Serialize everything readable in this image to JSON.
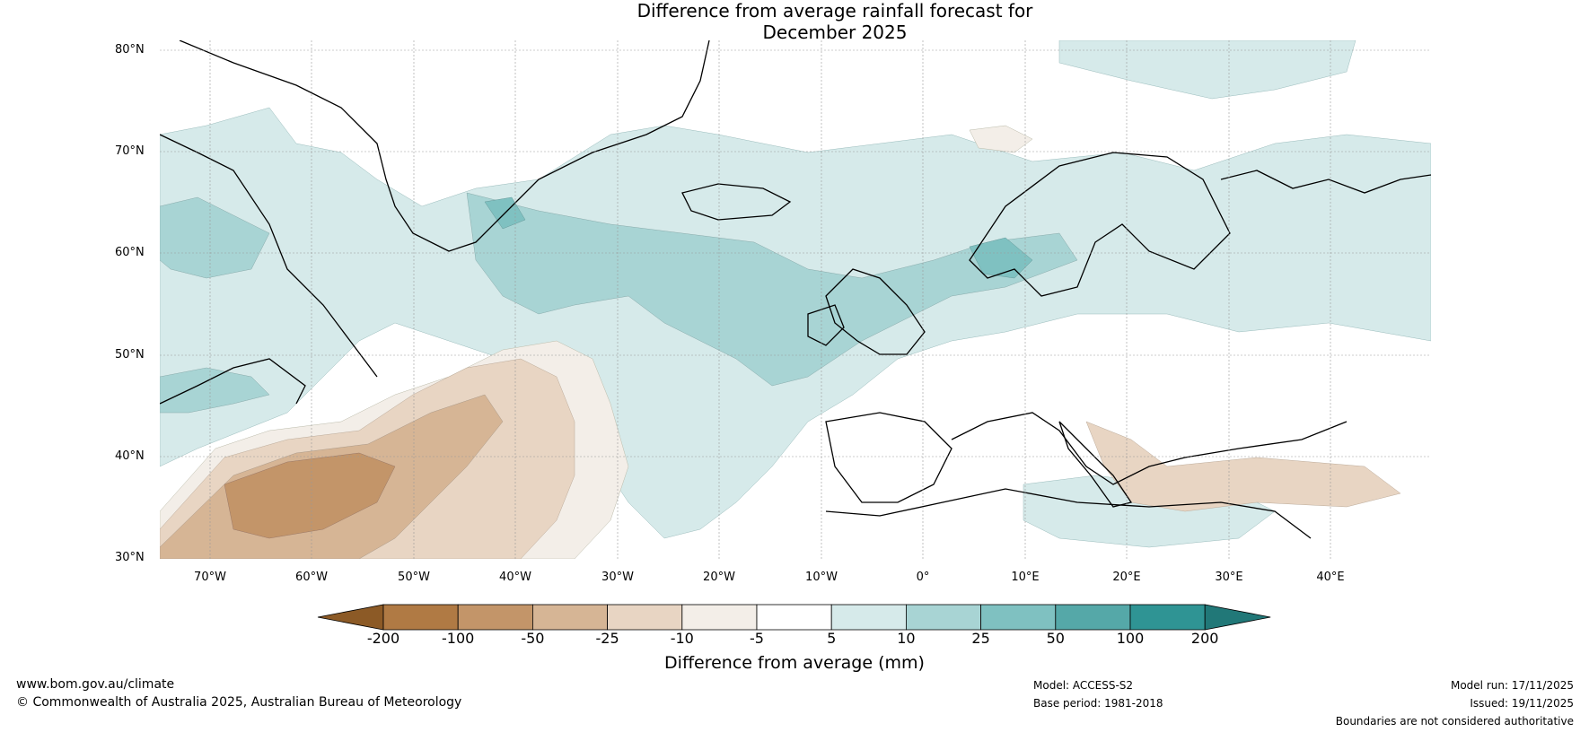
{
  "title": {
    "line1": "Difference from average rainfall forecast for",
    "line2": "December 2025"
  },
  "lat_labels": [
    "80°N",
    "70°N",
    "60°N",
    "50°N",
    "40°N",
    "30°N"
  ],
  "lon_labels": [
    "70°W",
    "60°W",
    "50°W",
    "40°W",
    "30°W",
    "20°W",
    "10°W",
    "0°",
    "10°E",
    "20°E",
    "30°E",
    "40°E"
  ],
  "colorbar": {
    "ticks": [
      "-200",
      "-100",
      "-50",
      "-25",
      "-10",
      "-5",
      "5",
      "10",
      "25",
      "50",
      "100",
      "200"
    ],
    "label": "Difference from average (mm)",
    "colors": [
      "#8c5a26",
      "#b07a44",
      "#c39569",
      "#d6b595",
      "#e8d5c3",
      "#f3eee8",
      "#ffffff",
      "#d6eaea",
      "#a8d4d4",
      "#7fc1c1",
      "#55a8a8",
      "#2f9494",
      "#217878"
    ]
  },
  "footer": {
    "website": "www.bom.gov.au/climate",
    "copyright": "© Commonwealth of Australia 2025, Australian Bureau of Meteorology",
    "model": "Model: ACCESS-S2",
    "base_period": "Base period: 1981-2018",
    "model_run": "Model run: 17/11/2025",
    "issued": "Issued: 19/11/2025",
    "disclaimer": "Boundaries are not considered authoritative"
  }
}
